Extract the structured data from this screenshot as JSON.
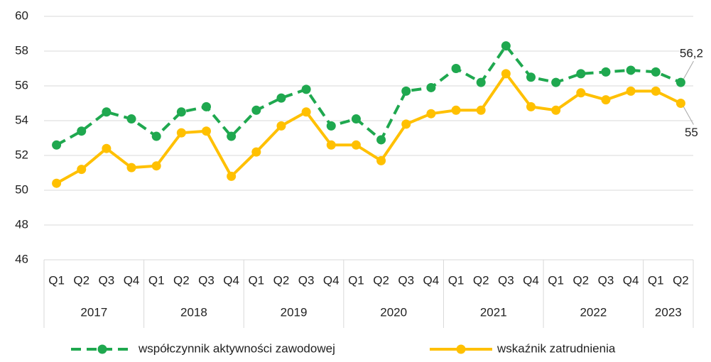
{
  "chart_data": {
    "type": "line",
    "categories": [
      "Q1",
      "Q2",
      "Q3",
      "Q4",
      "Q1",
      "Q2",
      "Q3",
      "Q4",
      "Q1",
      "Q2",
      "Q3",
      "Q4",
      "Q1",
      "Q2",
      "Q3",
      "Q4",
      "Q1",
      "Q2",
      "Q3",
      "Q4",
      "Q1",
      "Q2",
      "Q3",
      "Q4",
      "Q1",
      "Q2"
    ],
    "groups": [
      {
        "name": "2017",
        "span": 4
      },
      {
        "name": "2018",
        "span": 4
      },
      {
        "name": "2019",
        "span": 4
      },
      {
        "name": "2020",
        "span": 4
      },
      {
        "name": "2021",
        "span": 4
      },
      {
        "name": "2022",
        "span": 4
      },
      {
        "name": "2023",
        "span": 2
      }
    ],
    "series": [
      {
        "name": "współczynnik aktywności zawodowej",
        "color": "#1fa84f",
        "dashed": true,
        "values": [
          52.6,
          53.4,
          54.5,
          54.1,
          53.1,
          54.5,
          54.8,
          53.1,
          54.6,
          55.3,
          55.8,
          53.7,
          54.1,
          52.9,
          55.7,
          55.9,
          57.0,
          56.2,
          58.3,
          56.5,
          56.2,
          56.7,
          56.8,
          56.9,
          56.8,
          56.2
        ],
        "value_labels": [
          null,
          null,
          null,
          null,
          null,
          null,
          null,
          null,
          null,
          null,
          null,
          null,
          null,
          null,
          null,
          null,
          null,
          null,
          null,
          null,
          null,
          null,
          null,
          null,
          null,
          "56,2"
        ]
      },
      {
        "name": "wskaźnik zatrudnienia",
        "color": "#ffc000",
        "dashed": false,
        "values": [
          50.4,
          51.2,
          52.4,
          51.3,
          51.4,
          53.3,
          53.4,
          50.8,
          52.2,
          53.7,
          54.5,
          52.6,
          52.6,
          51.7,
          53.8,
          54.4,
          54.6,
          54.6,
          56.7,
          54.8,
          54.6,
          55.6,
          55.2,
          55.7,
          55.7,
          55.0
        ],
        "value_labels": [
          null,
          null,
          null,
          null,
          null,
          null,
          null,
          null,
          null,
          null,
          null,
          null,
          null,
          null,
          null,
          null,
          null,
          null,
          null,
          null,
          null,
          null,
          null,
          null,
          null,
          "55"
        ]
      }
    ],
    "ylim": [
      46,
      60
    ],
    "yticks": [
      46,
      48,
      50,
      52,
      54,
      56,
      58,
      60
    ],
    "grid": true,
    "legend": "bottom"
  }
}
